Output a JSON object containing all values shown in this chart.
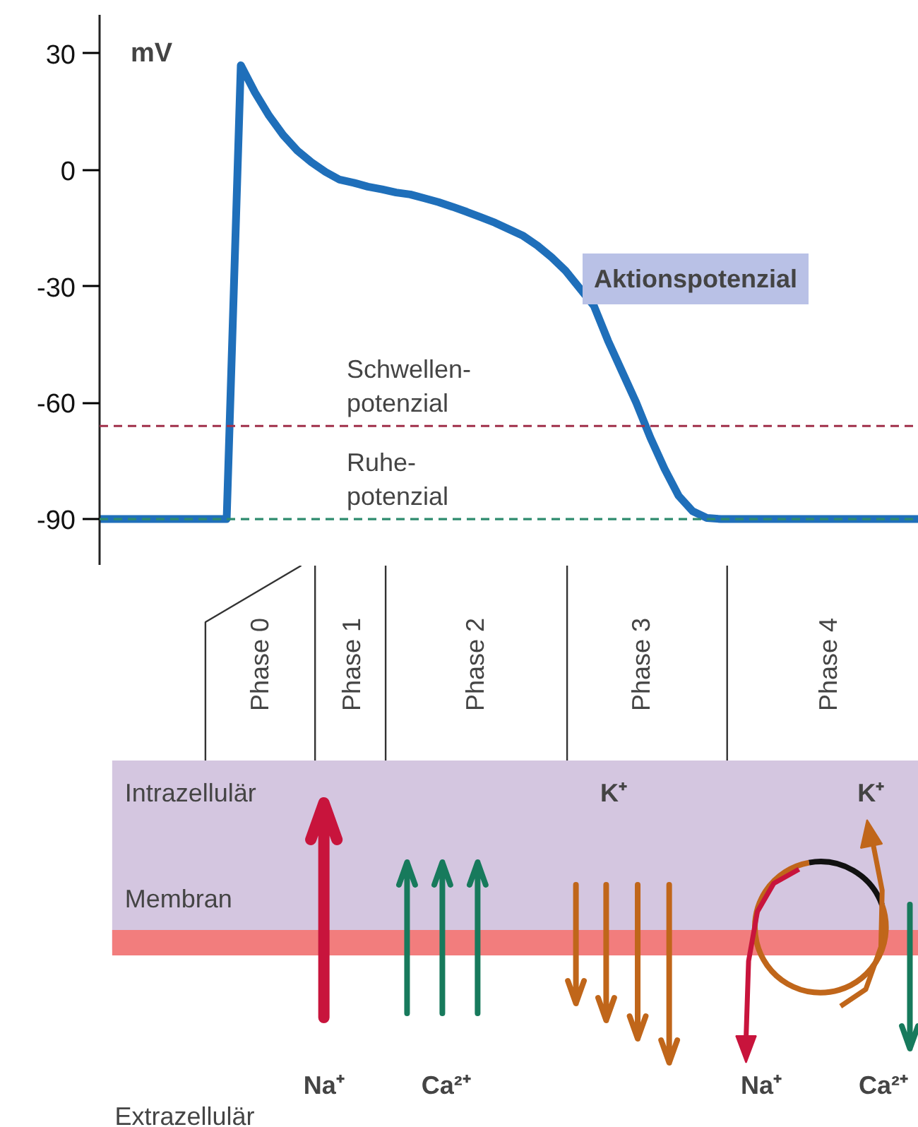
{
  "chart_data": {
    "type": "line",
    "ylabel": "mV",
    "categories": [
      null,
      null,
      null,
      null,
      null,
      null,
      null,
      null,
      null,
      null,
      null,
      null,
      null,
      null,
      null,
      null,
      null,
      null,
      null,
      null,
      null,
      null,
      null,
      null,
      null,
      null,
      null,
      null,
      null,
      null,
      null,
      null,
      null,
      null,
      null,
      null,
      null,
      null,
      null,
      null,
      null,
      null,
      null,
      null,
      null,
      null,
      null,
      null,
      null,
      null,
      null,
      null,
      null,
      null,
      null,
      null,
      null,
      null,
      null
    ],
    "series": [
      {
        "name": "Aktionspotenzial",
        "color": "#1f6fba",
        "values": [
          -90,
          -90,
          -90,
          -90,
          -90,
          -90,
          -90,
          -90,
          -90,
          -90,
          27,
          20,
          14,
          9,
          5,
          2,
          -0.5,
          -2.5,
          -3.3,
          -4.3,
          -5,
          -5.8,
          -6.3,
          -7.3,
          -8.3,
          -9.5,
          -10.8,
          -12.2,
          -13.6,
          -15.3,
          -17,
          -19.5,
          -22.5,
          -26,
          -30.5,
          -35,
          -44,
          -52,
          -60,
          -69,
          -77,
          -84,
          -88,
          -89.7,
          -90,
          -90,
          -90,
          -90,
          -90,
          -90,
          -90,
          -90,
          -90,
          -90,
          -90,
          -90,
          -90,
          -90,
          -90
        ]
      }
    ],
    "ylim": [
      -102,
      40
    ],
    "yticks": [
      -90,
      -60,
      -30,
      0,
      30
    ],
    "grid": false,
    "legend": false,
    "tick_labels": "y",
    "line_style": "solid",
    "marker": "none",
    "ref_lines": [
      {
        "axis": "y",
        "value": -66,
        "label": "Schwellen-\npotenzial",
        "color": "#a0304a",
        "line_style": "dashed"
      },
      {
        "axis": "y",
        "value": -90,
        "label": "Ruhe-\npotenzial",
        "color": "#2e8b6e",
        "line_style": "dashed"
      }
    ],
    "annotations": [
      "Phase 0",
      "Phase 1",
      "Phase 2",
      "Phase 3",
      "Phase 4",
      "Intrazellulär",
      "Membran",
      "Extrazellulär",
      "Na⁺",
      "Ca²⁺",
      "K⁺",
      "K⁺",
      "Na⁺",
      "Ca²⁺"
    ]
  }
}
